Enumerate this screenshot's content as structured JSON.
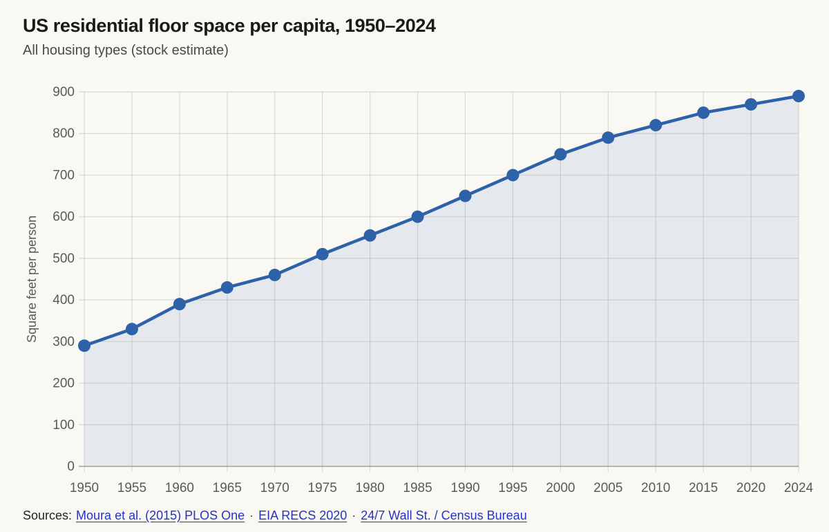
{
  "header": {
    "title": "US residential floor space per capita, 1950–2024",
    "subtitle": "All housing types (stock estimate)"
  },
  "chart_data": {
    "type": "line",
    "title": "US residential floor space per capita, 1950–2024",
    "subtitle": "All housing types (stock estimate)",
    "x_labels": [
      "1950",
      "1955",
      "1960",
      "1965",
      "1970",
      "1975",
      "1980",
      "1985",
      "1990",
      "1995",
      "2000",
      "2005",
      "2010",
      "2015",
      "2020",
      "2024"
    ],
    "values": [
      290,
      330,
      390,
      430,
      460,
      510,
      555,
      600,
      650,
      700,
      750,
      790,
      820,
      850,
      870,
      890
    ],
    "xlabel": "",
    "ylabel": "Square feet per person",
    "ylim": [
      0,
      900
    ],
    "yticks": [
      0,
      100,
      200,
      300,
      400,
      500,
      600,
      700,
      800,
      900
    ],
    "grid": true,
    "legend": "none",
    "marker": "circle",
    "area_fill": true
  },
  "colors": {
    "background": "#faf8f2",
    "line": "#2e62a8",
    "marker": "#2e62a8",
    "area": "#e5e8ec",
    "grid": "#8c8a80",
    "axis": "#a3a098",
    "tick_text": "#5b5953",
    "title_text": "#1b1a17",
    "subtitle_text": "#4c4a45",
    "link": "#2433c0"
  },
  "footer": {
    "prefix": "Sources:",
    "separator": "·",
    "links": [
      "Moura et al. (2015) PLOS One",
      "EIA RECS 2020",
      "24/7 Wall St. / Census Bureau"
    ]
  }
}
